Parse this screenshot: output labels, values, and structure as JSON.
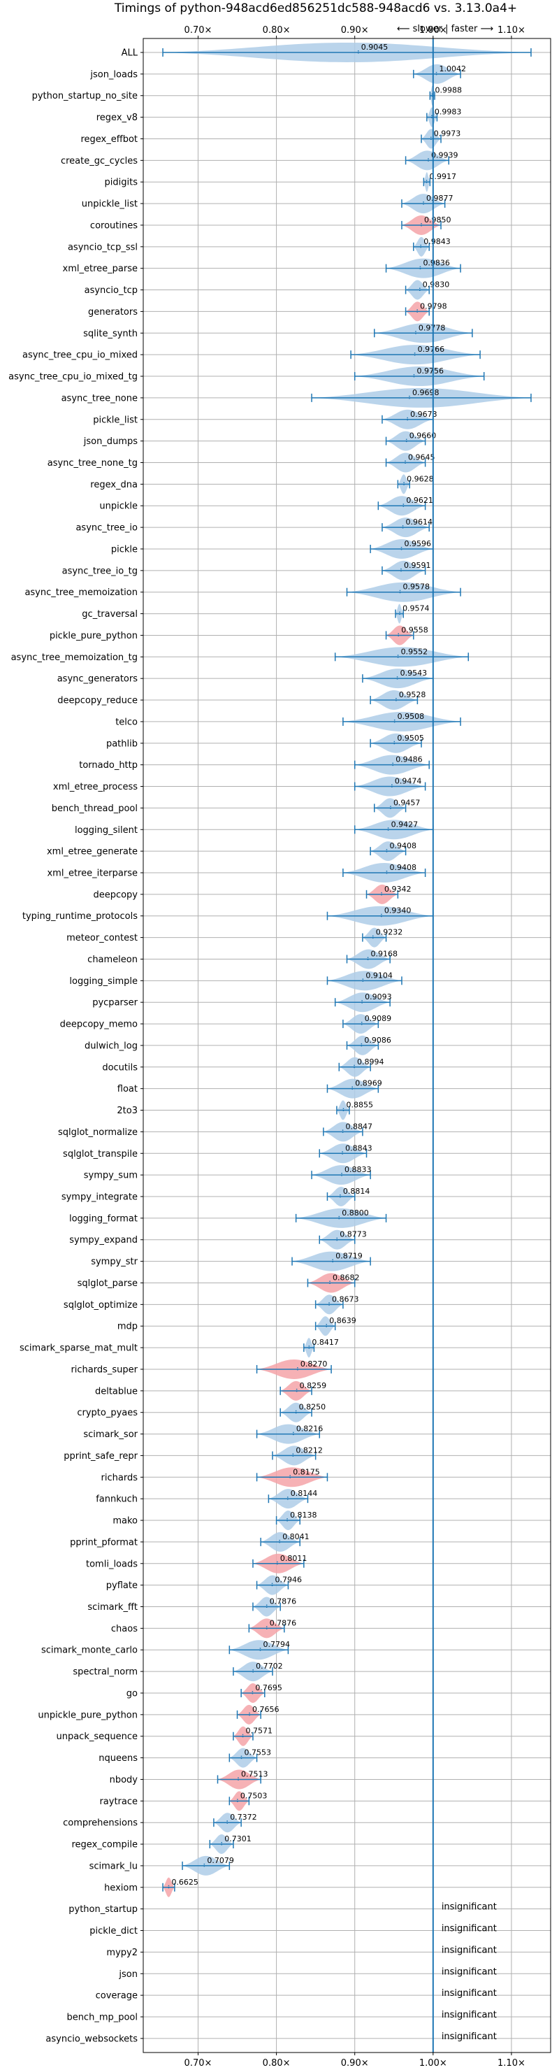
{
  "chart_data": {
    "type": "violin",
    "title": "Timings of python-948acd6ed856251dc588-948acd6 vs. 3.13.0a4+",
    "direction_note": "⟵ slower | faster ⟶",
    "xlim": [
      0.63,
      1.15
    ],
    "xticks": [
      0.7,
      0.8,
      0.9,
      1.0,
      1.1
    ],
    "xtick_labels": [
      "0.70×",
      "0.80×",
      "0.90×",
      "1.00×",
      "1.10×"
    ],
    "reference_line": 1.0,
    "grid": true,
    "colors": {
      "normal": "#aecde8",
      "slower": "#f4a3a8",
      "line": "#1f77b4",
      "grid": "#b0b0b0"
    },
    "insignificant_label": "insignificant",
    "benchmarks": [
      {
        "name": "ALL",
        "median": 0.9045,
        "min": 0.655,
        "max": 1.125,
        "color": "normal"
      },
      {
        "name": "json_loads",
        "median": 1.0042,
        "min": 0.975,
        "max": 1.035,
        "color": "normal"
      },
      {
        "name": "python_startup_no_site",
        "median": 0.9988,
        "min": 0.996,
        "max": 1.002,
        "color": "normal"
      },
      {
        "name": "regex_v8",
        "median": 0.9983,
        "min": 0.992,
        "max": 1.005,
        "color": "normal"
      },
      {
        "name": "regex_effbot",
        "median": 0.9973,
        "min": 0.985,
        "max": 1.01,
        "color": "normal"
      },
      {
        "name": "create_gc_cycles",
        "median": 0.9939,
        "min": 0.965,
        "max": 1.02,
        "color": "normal"
      },
      {
        "name": "pidigits",
        "median": 0.9917,
        "min": 0.988,
        "max": 0.996,
        "color": "normal"
      },
      {
        "name": "unpickle_list",
        "median": 0.9877,
        "min": 0.96,
        "max": 1.015,
        "color": "normal"
      },
      {
        "name": "coroutines",
        "median": 0.985,
        "min": 0.96,
        "max": 1.01,
        "color": "slower"
      },
      {
        "name": "asyncio_tcp_ssl",
        "median": 0.9843,
        "min": 0.975,
        "max": 0.995,
        "color": "normal"
      },
      {
        "name": "xml_etree_parse",
        "median": 0.9836,
        "min": 0.94,
        "max": 1.035,
        "color": "normal"
      },
      {
        "name": "asyncio_tcp",
        "median": 0.983,
        "min": 0.965,
        "max": 0.995,
        "color": "normal"
      },
      {
        "name": "generators",
        "median": 0.9798,
        "min": 0.965,
        "max": 0.995,
        "color": "slower"
      },
      {
        "name": "sqlite_synth",
        "median": 0.9778,
        "min": 0.925,
        "max": 1.05,
        "color": "normal"
      },
      {
        "name": "async_tree_cpu_io_mixed",
        "median": 0.9766,
        "min": 0.895,
        "max": 1.06,
        "color": "normal"
      },
      {
        "name": "async_tree_cpu_io_mixed_tg",
        "median": 0.9756,
        "min": 0.9,
        "max": 1.065,
        "color": "normal"
      },
      {
        "name": "async_tree_none",
        "median": 0.9698,
        "min": 0.845,
        "max": 1.125,
        "color": "normal"
      },
      {
        "name": "pickle_list",
        "median": 0.9673,
        "min": 0.935,
        "max": 1.0,
        "color": "normal"
      },
      {
        "name": "json_dumps",
        "median": 0.966,
        "min": 0.94,
        "max": 0.99,
        "color": "normal"
      },
      {
        "name": "async_tree_none_tg",
        "median": 0.9645,
        "min": 0.94,
        "max": 0.99,
        "color": "normal"
      },
      {
        "name": "regex_dna",
        "median": 0.9628,
        "min": 0.955,
        "max": 0.97,
        "color": "normal"
      },
      {
        "name": "unpickle",
        "median": 0.9621,
        "min": 0.93,
        "max": 0.99,
        "color": "normal"
      },
      {
        "name": "async_tree_io",
        "median": 0.9614,
        "min": 0.935,
        "max": 0.995,
        "color": "normal"
      },
      {
        "name": "pickle",
        "median": 0.9596,
        "min": 0.92,
        "max": 1.0,
        "color": "normal"
      },
      {
        "name": "async_tree_io_tg",
        "median": 0.9591,
        "min": 0.935,
        "max": 0.99,
        "color": "normal"
      },
      {
        "name": "async_tree_memoization",
        "median": 0.9578,
        "min": 0.89,
        "max": 1.035,
        "color": "normal"
      },
      {
        "name": "gc_traversal",
        "median": 0.9574,
        "min": 0.952,
        "max": 0.962,
        "color": "normal"
      },
      {
        "name": "pickle_pure_python",
        "median": 0.9558,
        "min": 0.94,
        "max": 0.975,
        "color": "slower"
      },
      {
        "name": "async_tree_memoization_tg",
        "median": 0.9552,
        "min": 0.875,
        "max": 1.045,
        "color": "normal"
      },
      {
        "name": "async_generators",
        "median": 0.9543,
        "min": 0.91,
        "max": 1.0,
        "color": "normal"
      },
      {
        "name": "deepcopy_reduce",
        "median": 0.9528,
        "min": 0.92,
        "max": 0.98,
        "color": "normal"
      },
      {
        "name": "telco",
        "median": 0.9508,
        "min": 0.885,
        "max": 1.035,
        "color": "normal"
      },
      {
        "name": "pathlib",
        "median": 0.9505,
        "min": 0.92,
        "max": 0.985,
        "color": "normal"
      },
      {
        "name": "tornado_http",
        "median": 0.9486,
        "min": 0.9,
        "max": 0.995,
        "color": "normal"
      },
      {
        "name": "xml_etree_process",
        "median": 0.9474,
        "min": 0.9,
        "max": 0.99,
        "color": "normal"
      },
      {
        "name": "bench_thread_pool",
        "median": 0.9457,
        "min": 0.925,
        "max": 0.965,
        "color": "normal"
      },
      {
        "name": "logging_silent",
        "median": 0.9427,
        "min": 0.9,
        "max": 1.0,
        "color": "normal"
      },
      {
        "name": "xml_etree_generate",
        "median": 0.9408,
        "min": 0.92,
        "max": 0.965,
        "color": "normal"
      },
      {
        "name": "xml_etree_iterparse",
        "median": 0.9408,
        "min": 0.885,
        "max": 0.99,
        "color": "normal"
      },
      {
        "name": "deepcopy",
        "median": 0.9342,
        "min": 0.915,
        "max": 0.955,
        "color": "slower"
      },
      {
        "name": "typing_runtime_protocols",
        "median": 0.934,
        "min": 0.865,
        "max": 1.0,
        "color": "normal"
      },
      {
        "name": "meteor_contest",
        "median": 0.9232,
        "min": 0.91,
        "max": 0.94,
        "color": "normal"
      },
      {
        "name": "chameleon",
        "median": 0.9168,
        "min": 0.89,
        "max": 0.945,
        "color": "normal"
      },
      {
        "name": "logging_simple",
        "median": 0.9104,
        "min": 0.865,
        "max": 0.96,
        "color": "normal"
      },
      {
        "name": "pycparser",
        "median": 0.9093,
        "min": 0.875,
        "max": 0.945,
        "color": "normal"
      },
      {
        "name": "deepcopy_memo",
        "median": 0.9089,
        "min": 0.885,
        "max": 0.93,
        "color": "normal"
      },
      {
        "name": "dulwich_log",
        "median": 0.9086,
        "min": 0.89,
        "max": 0.93,
        "color": "normal"
      },
      {
        "name": "docutils",
        "median": 0.8994,
        "min": 0.88,
        "max": 0.92,
        "color": "normal"
      },
      {
        "name": "float",
        "median": 0.8969,
        "min": 0.865,
        "max": 0.93,
        "color": "normal"
      },
      {
        "name": "2to3",
        "median": 0.8855,
        "min": 0.877,
        "max": 0.893,
        "color": "normal"
      },
      {
        "name": "sqlglot_normalize",
        "median": 0.8847,
        "min": 0.86,
        "max": 0.91,
        "color": "normal"
      },
      {
        "name": "sqlglot_transpile",
        "median": 0.8843,
        "min": 0.855,
        "max": 0.915,
        "color": "normal"
      },
      {
        "name": "sympy_sum",
        "median": 0.8833,
        "min": 0.845,
        "max": 0.92,
        "color": "normal"
      },
      {
        "name": "sympy_integrate",
        "median": 0.8814,
        "min": 0.865,
        "max": 0.9,
        "color": "normal"
      },
      {
        "name": "logging_format",
        "median": 0.88,
        "min": 0.825,
        "max": 0.94,
        "color": "normal"
      },
      {
        "name": "sympy_expand",
        "median": 0.8773,
        "min": 0.855,
        "max": 0.9,
        "color": "normal"
      },
      {
        "name": "sympy_str",
        "median": 0.8719,
        "min": 0.82,
        "max": 0.92,
        "color": "normal"
      },
      {
        "name": "sqlglot_parse",
        "median": 0.8682,
        "min": 0.84,
        "max": 0.9,
        "color": "slower"
      },
      {
        "name": "sqlglot_optimize",
        "median": 0.8673,
        "min": 0.85,
        "max": 0.885,
        "color": "normal"
      },
      {
        "name": "mdp",
        "median": 0.8639,
        "min": 0.85,
        "max": 0.875,
        "color": "normal"
      },
      {
        "name": "scimark_sparse_mat_mult",
        "median": 0.8417,
        "min": 0.835,
        "max": 0.848,
        "color": "normal"
      },
      {
        "name": "richards_super",
        "median": 0.827,
        "min": 0.775,
        "max": 0.87,
        "color": "slower"
      },
      {
        "name": "deltablue",
        "median": 0.8259,
        "min": 0.805,
        "max": 0.845,
        "color": "slower"
      },
      {
        "name": "crypto_pyaes",
        "median": 0.825,
        "min": 0.805,
        "max": 0.845,
        "color": "normal"
      },
      {
        "name": "scimark_sor",
        "median": 0.8216,
        "min": 0.775,
        "max": 0.855,
        "color": "normal"
      },
      {
        "name": "pprint_safe_repr",
        "median": 0.8212,
        "min": 0.795,
        "max": 0.85,
        "color": "normal"
      },
      {
        "name": "richards",
        "median": 0.8175,
        "min": 0.775,
        "max": 0.865,
        "color": "slower"
      },
      {
        "name": "fannkuch",
        "median": 0.8144,
        "min": 0.79,
        "max": 0.84,
        "color": "normal"
      },
      {
        "name": "mako",
        "median": 0.8138,
        "min": 0.8,
        "max": 0.83,
        "color": "normal"
      },
      {
        "name": "pprint_pformat",
        "median": 0.8041,
        "min": 0.78,
        "max": 0.83,
        "color": "normal"
      },
      {
        "name": "tomli_loads",
        "median": 0.8011,
        "min": 0.77,
        "max": 0.835,
        "color": "slower"
      },
      {
        "name": "pyflate",
        "median": 0.7946,
        "min": 0.775,
        "max": 0.815,
        "color": "normal"
      },
      {
        "name": "scimark_fft",
        "median": 0.7876,
        "min": 0.77,
        "max": 0.805,
        "color": "normal"
      },
      {
        "name": "chaos",
        "median": 0.7876,
        "min": 0.765,
        "max": 0.81,
        "color": "slower"
      },
      {
        "name": "scimark_monte_carlo",
        "median": 0.7794,
        "min": 0.74,
        "max": 0.815,
        "color": "normal"
      },
      {
        "name": "spectral_norm",
        "median": 0.7702,
        "min": 0.745,
        "max": 0.795,
        "color": "normal"
      },
      {
        "name": "go",
        "median": 0.7695,
        "min": 0.755,
        "max": 0.785,
        "color": "slower"
      },
      {
        "name": "unpickle_pure_python",
        "median": 0.7656,
        "min": 0.75,
        "max": 0.78,
        "color": "slower"
      },
      {
        "name": "unpack_sequence",
        "median": 0.7571,
        "min": 0.745,
        "max": 0.77,
        "color": "slower"
      },
      {
        "name": "nqueens",
        "median": 0.7553,
        "min": 0.74,
        "max": 0.775,
        "color": "normal"
      },
      {
        "name": "nbody",
        "median": 0.7513,
        "min": 0.725,
        "max": 0.78,
        "color": "slower"
      },
      {
        "name": "raytrace",
        "median": 0.7503,
        "min": 0.74,
        "max": 0.765,
        "color": "slower"
      },
      {
        "name": "comprehensions",
        "median": 0.7372,
        "min": 0.72,
        "max": 0.755,
        "color": "normal"
      },
      {
        "name": "regex_compile",
        "median": 0.7301,
        "min": 0.715,
        "max": 0.745,
        "color": "normal"
      },
      {
        "name": "scimark_lu",
        "median": 0.7079,
        "min": 0.68,
        "max": 0.74,
        "color": "normal"
      },
      {
        "name": "hexiom",
        "median": 0.6625,
        "min": 0.655,
        "max": 0.67,
        "color": "slower"
      },
      {
        "name": "python_startup",
        "insignificant": true
      },
      {
        "name": "pickle_dict",
        "insignificant": true
      },
      {
        "name": "mypy2",
        "insignificant": true
      },
      {
        "name": "json",
        "insignificant": true
      },
      {
        "name": "coverage",
        "insignificant": true
      },
      {
        "name": "bench_mp_pool",
        "insignificant": true
      },
      {
        "name": "asyncio_websockets",
        "insignificant": true
      }
    ]
  }
}
